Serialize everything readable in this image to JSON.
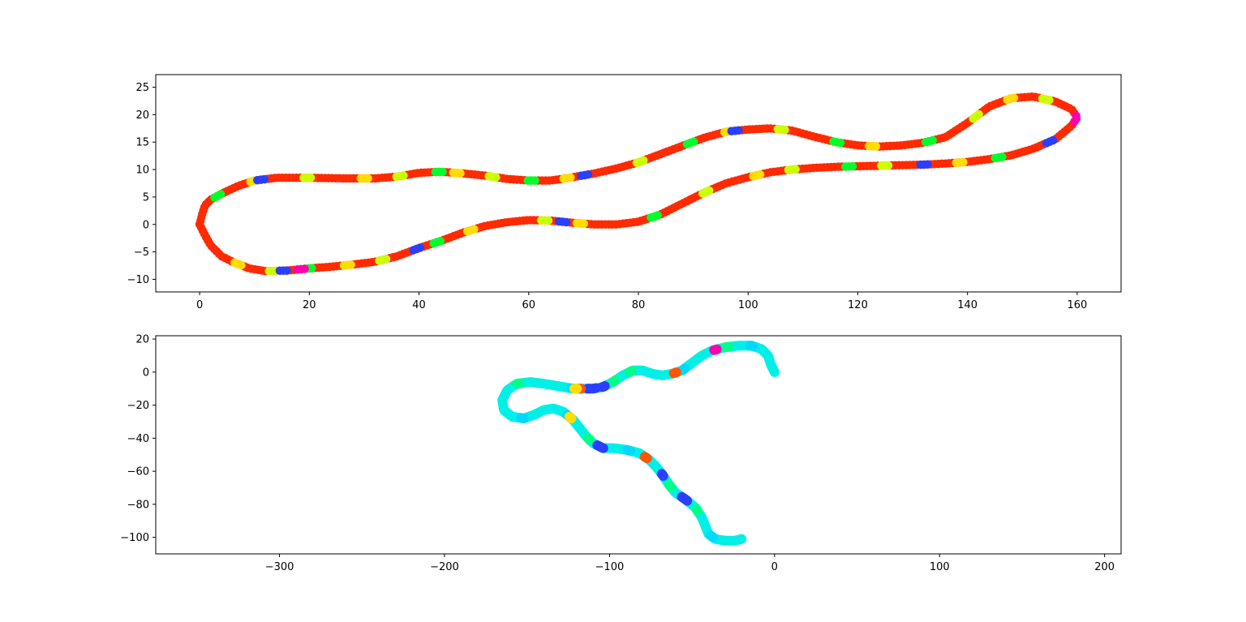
{
  "chart_data": [
    {
      "type": "scatter",
      "title": "",
      "xlabel": "",
      "ylabel": "",
      "xlim": [
        -8,
        168
      ],
      "ylim": [
        -12.3,
        27.3
      ],
      "xticks": [
        0,
        20,
        40,
        60,
        80,
        100,
        120,
        140,
        160
      ],
      "yticks": [
        -10,
        -5,
        0,
        5,
        10,
        15,
        20,
        25
      ],
      "grid": false,
      "legend": "none",
      "dominant_color": "#ff2a00",
      "path": [
        [
          0,
          0
        ],
        [
          0.5,
          2.0
        ],
        [
          1,
          3.5
        ],
        [
          2,
          4.5
        ],
        [
          4,
          5.6
        ],
        [
          7,
          7.0
        ],
        [
          10,
          8.0
        ],
        [
          14,
          8.5
        ],
        [
          20,
          8.5
        ],
        [
          26,
          8.4
        ],
        [
          32,
          8.4
        ],
        [
          36,
          8.7
        ],
        [
          40,
          9.4
        ],
        [
          44,
          9.6
        ],
        [
          48,
          9.3
        ],
        [
          52,
          8.9
        ],
        [
          56,
          8.3
        ],
        [
          60,
          8.0
        ],
        [
          64,
          8.0
        ],
        [
          68,
          8.6
        ],
        [
          72,
          9.3
        ],
        [
          76,
          10.2
        ],
        [
          80,
          11.3
        ],
        [
          84,
          12.8
        ],
        [
          88,
          14.3
        ],
        [
          92,
          15.8
        ],
        [
          96,
          16.9
        ],
        [
          100,
          17.3
        ],
        [
          104,
          17.5
        ],
        [
          108,
          17.1
        ],
        [
          112,
          16.0
        ],
        [
          116,
          15.0
        ],
        [
          120,
          14.4
        ],
        [
          124,
          14.2
        ],
        [
          128,
          14.4
        ],
        [
          132,
          14.9
        ],
        [
          136,
          15.9
        ],
        [
          140,
          18.5
        ],
        [
          144,
          21.5
        ],
        [
          148,
          23.0
        ],
        [
          152,
          23.3
        ],
        [
          156,
          22.4
        ],
        [
          159,
          21.0
        ],
        [
          160,
          19.5
        ],
        [
          159,
          18.0
        ],
        [
          156,
          15.5
        ],
        [
          152,
          13.8
        ],
        [
          148,
          12.6
        ],
        [
          144,
          11.9
        ],
        [
          140,
          11.4
        ],
        [
          136,
          11.1
        ],
        [
          132,
          10.9
        ],
        [
          128,
          10.8
        ],
        [
          124,
          10.7
        ],
        [
          120,
          10.6
        ],
        [
          116,
          10.5
        ],
        [
          112,
          10.3
        ],
        [
          108,
          10.0
        ],
        [
          104,
          9.5
        ],
        [
          100,
          8.6
        ],
        [
          96,
          7.5
        ],
        [
          92,
          5.8
        ],
        [
          88,
          3.8
        ],
        [
          84,
          1.8
        ],
        [
          80,
          0.5
        ],
        [
          76,
          0.0
        ],
        [
          72,
          0.0
        ],
        [
          68,
          0.3
        ],
        [
          64,
          0.7
        ],
        [
          60,
          0.8
        ],
        [
          56,
          0.4
        ],
        [
          52,
          -0.3
        ],
        [
          48,
          -1.5
        ],
        [
          44,
          -3.0
        ],
        [
          40,
          -4.3
        ],
        [
          36,
          -5.8
        ],
        [
          32,
          -6.8
        ],
        [
          28,
          -7.3
        ],
        [
          24,
          -7.7
        ],
        [
          20,
          -8.0
        ],
        [
          16,
          -8.4
        ],
        [
          12,
          -8.5
        ],
        [
          9,
          -8.0
        ],
        [
          6,
          -6.8
        ],
        [
          4,
          -5.8
        ],
        [
          2,
          -3.8
        ],
        [
          1,
          -2.0
        ],
        [
          0,
          0
        ]
      ],
      "accents": [
        {
          "color": "#00ff2a",
          "t": [
            0.02,
            0.14,
            0.19,
            0.28,
            0.36,
            0.41,
            0.55,
            0.63,
            0.74,
            0.86,
            0.93
          ]
        },
        {
          "color": "#ccff00",
          "t": [
            0.07,
            0.12,
            0.17,
            0.25,
            0.33,
            0.44,
            0.48,
            0.61,
            0.66,
            0.71,
            0.8,
            0.89,
            0.95
          ]
        },
        {
          "color": "#ffdd00",
          "t": [
            0.04,
            0.1,
            0.15,
            0.21,
            0.3,
            0.38,
            0.46,
            0.57,
            0.68,
            0.78,
            0.84,
            0.91,
            0.97
          ]
        },
        {
          "color": "#2a3fff",
          "t": [
            0.045,
            0.22,
            0.305,
            0.52,
            0.59,
            0.79,
            0.87,
            0.945
          ]
        },
        {
          "color": "#ff00aa",
          "t": [
            0.935,
            0.5
          ]
        }
      ]
    },
    {
      "type": "scatter",
      "title": "",
      "xlabel": "",
      "ylabel": "",
      "xlim": [
        -375,
        210
      ],
      "ylim": [
        -110,
        22
      ],
      "xticks": [
        -300,
        -200,
        -100,
        0,
        100,
        200
      ],
      "yticks": [
        -100,
        -80,
        -60,
        -40,
        -20,
        0,
        20
      ],
      "grid": false,
      "legend": "none",
      "dominant_color": "#00f0e8",
      "path": [
        [
          0,
          0
        ],
        [
          -2,
          4
        ],
        [
          -4,
          10
        ],
        [
          -8,
          14
        ],
        [
          -14,
          16
        ],
        [
          -22,
          16
        ],
        [
          -30,
          15
        ],
        [
          -38,
          13
        ],
        [
          -44,
          10
        ],
        [
          -48,
          7
        ],
        [
          -52,
          4
        ],
        [
          -56,
          1
        ],
        [
          -62,
          -1
        ],
        [
          -68,
          -2
        ],
        [
          -74,
          -1
        ],
        [
          -80,
          1
        ],
        [
          -86,
          1
        ],
        [
          -92,
          -2
        ],
        [
          -98,
          -6
        ],
        [
          -104,
          -9
        ],
        [
          -110,
          -10
        ],
        [
          -116,
          -10
        ],
        [
          -122,
          -10
        ],
        [
          -128,
          -9
        ],
        [
          -134,
          -8
        ],
        [
          -140,
          -7
        ],
        [
          -148,
          -6
        ],
        [
          -156,
          -7
        ],
        [
          -162,
          -11
        ],
        [
          -165,
          -17
        ],
        [
          -164,
          -23
        ],
        [
          -159,
          -27
        ],
        [
          -152,
          -28
        ],
        [
          -146,
          -26
        ],
        [
          -140,
          -23
        ],
        [
          -134,
          -22
        ],
        [
          -128,
          -24
        ],
        [
          -122,
          -29
        ],
        [
          -118,
          -34
        ],
        [
          -114,
          -39
        ],
        [
          -110,
          -43
        ],
        [
          -104,
          -46
        ],
        [
          -98,
          -46
        ],
        [
          -90,
          -47
        ],
        [
          -82,
          -49
        ],
        [
          -76,
          -53
        ],
        [
          -72,
          -57
        ],
        [
          -68,
          -62
        ],
        [
          -64,
          -68
        ],
        [
          -60,
          -73
        ],
        [
          -54,
          -77
        ],
        [
          -48,
          -82
        ],
        [
          -44,
          -88
        ],
        [
          -42,
          -93
        ],
        [
          -40,
          -98
        ],
        [
          -36,
          -101
        ],
        [
          -30,
          -102
        ],
        [
          -24,
          -102
        ],
        [
          -20,
          -101
        ]
      ],
      "accents": [
        {
          "color": "#00ff88",
          "t": [
            0.1,
            0.27,
            0.3,
            0.46,
            0.68,
            0.84,
            0.9
          ]
        },
        {
          "color": "#00d8ff",
          "t": [
            0.06,
            0.18,
            0.37,
            0.55,
            0.63,
            0.75,
            0.95
          ]
        },
        {
          "color": "#2a3fff",
          "t": [
            0.32,
            0.335,
            0.345,
            0.7,
            0.705,
            0.82,
            0.87,
            0.875
          ]
        },
        {
          "color": "#ff5500",
          "t": [
            0.195,
            0.36,
            0.78
          ]
        },
        {
          "color": "#ffdd00",
          "t": [
            0.365,
            0.635
          ]
        },
        {
          "color": "#ff00aa",
          "t": [
            0.12
          ]
        }
      ]
    }
  ],
  "subplots": [
    {
      "xtick_labels": [
        "0",
        "20",
        "40",
        "60",
        "80",
        "100",
        "120",
        "140",
        "160"
      ],
      "ytick_labels": [
        "−10",
        "−5",
        "0",
        "5",
        "10",
        "15",
        "20",
        "25"
      ]
    },
    {
      "xtick_labels": [
        "−300",
        "−200",
        "−100",
        "0",
        "100",
        "200"
      ],
      "ytick_labels": [
        "−100",
        "−80",
        "−60",
        "−40",
        "−20",
        "0",
        "20"
      ]
    }
  ]
}
